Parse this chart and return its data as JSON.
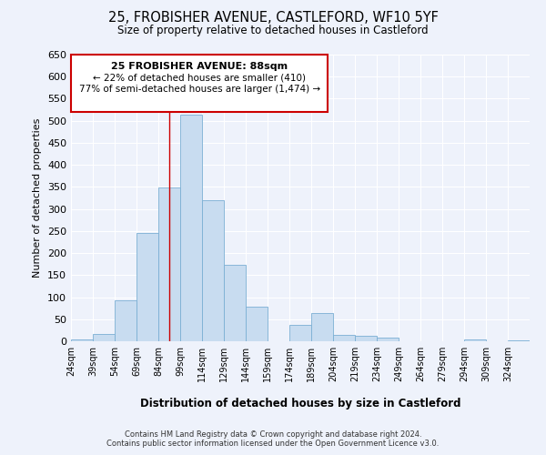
{
  "title": "25, FROBISHER AVENUE, CASTLEFORD, WF10 5YF",
  "subtitle": "Size of property relative to detached houses in Castleford",
  "xlabel": "Distribution of detached houses by size in Castleford",
  "ylabel": "Number of detached properties",
  "footer_line1": "Contains HM Land Registry data © Crown copyright and database right 2024.",
  "footer_line2": "Contains public sector information licensed under the Open Government Licence v3.0.",
  "bin_labels": [
    "24sqm",
    "39sqm",
    "54sqm",
    "69sqm",
    "84sqm",
    "99sqm",
    "114sqm",
    "129sqm",
    "144sqm",
    "159sqm",
    "174sqm",
    "189sqm",
    "204sqm",
    "219sqm",
    "234sqm",
    "249sqm",
    "264sqm",
    "279sqm",
    "294sqm",
    "309sqm",
    "324sqm"
  ],
  "bin_left_edges": [
    24,
    39,
    54,
    69,
    84,
    99,
    114,
    129,
    144,
    159,
    174,
    189,
    204,
    219,
    234,
    249,
    264,
    279,
    294,
    309,
    324
  ],
  "bin_width": 15,
  "bar_heights": [
    5,
    17,
    93,
    246,
    349,
    513,
    320,
    174,
    78,
    0,
    38,
    65,
    15,
    12,
    9,
    0,
    0,
    0,
    5,
    0,
    3
  ],
  "bar_color": "#c8dcf0",
  "bar_edgecolor": "#7bafd4",
  "ylim": [
    0,
    650
  ],
  "yticks": [
    0,
    50,
    100,
    150,
    200,
    250,
    300,
    350,
    400,
    450,
    500,
    550,
    600,
    650
  ],
  "vline_x": 91.5,
  "vline_color": "#cc0000",
  "annotation_title": "25 FROBISHER AVENUE: 88sqm",
  "annotation_line1": "← 22% of detached houses are smaller (410)",
  "annotation_line2": "77% of semi-detached houses are larger (1,474) →",
  "background_color": "#eef2fb"
}
